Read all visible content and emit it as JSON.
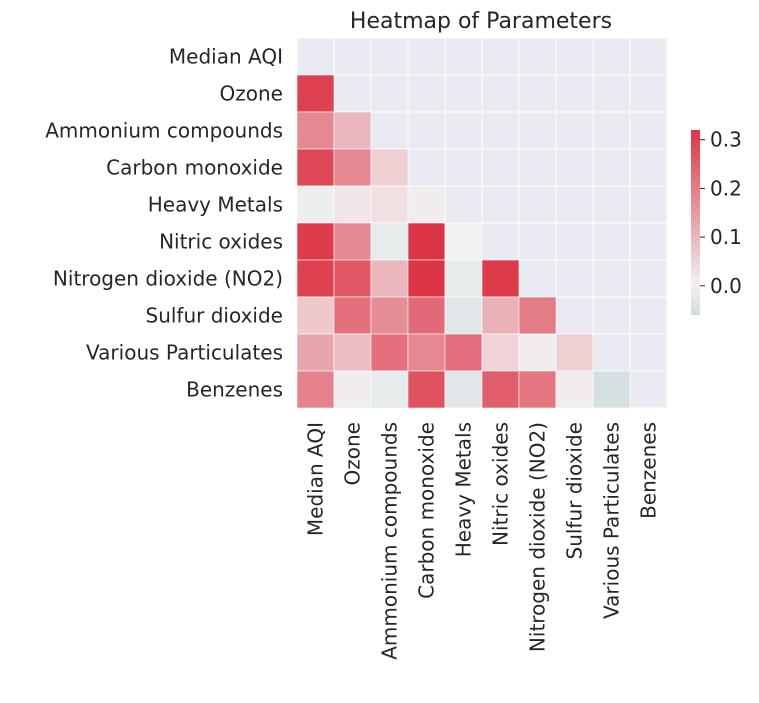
{
  "chart_data": {
    "type": "heatmap",
    "title": "Heatmap of Parameters",
    "rows": [
      "Median AQI",
      "Ozone",
      "Ammonium compounds",
      "Carbon monoxide",
      "Heavy Metals",
      "Nitric oxides",
      "Nitrogen dioxide (NO2)",
      "Sulfur dioxide",
      "Various Particulates",
      "Benzenes"
    ],
    "columns": [
      "Median AQI",
      "Ozone",
      "Ammonium compounds",
      "Carbon monoxide",
      "Heavy Metals",
      "Nitric oxides",
      "Nitrogen dioxide (NO2)",
      "Sulfur dioxide",
      "Various Particulates",
      "Benzenes"
    ],
    "mask": "upper-triangle-including-diagonal",
    "values": [
      [
        null,
        null,
        null,
        null,
        null,
        null,
        null,
        null,
        null,
        null
      ],
      [
        0.3,
        null,
        null,
        null,
        null,
        null,
        null,
        null,
        null,
        null
      ],
      [
        0.18,
        0.1,
        null,
        null,
        null,
        null,
        null,
        null,
        null,
        null
      ],
      [
        0.29,
        0.18,
        0.06,
        null,
        null,
        null,
        null,
        null,
        null,
        null
      ],
      [
        -0.01,
        0.02,
        0.03,
        0.01,
        null,
        null,
        null,
        null,
        null,
        null
      ],
      [
        0.31,
        0.18,
        -0.02,
        0.32,
        0.0,
        null,
        null,
        null,
        null,
        null
      ],
      [
        0.3,
        0.26,
        0.1,
        0.32,
        -0.02,
        0.31,
        null,
        null,
        null,
        null
      ],
      [
        0.07,
        0.22,
        0.17,
        0.23,
        -0.03,
        0.11,
        0.2,
        null,
        null,
        null
      ],
      [
        0.13,
        0.09,
        0.22,
        0.18,
        0.22,
        0.05,
        0.01,
        0.06,
        null,
        null
      ],
      [
        0.19,
        0.01,
        -0.02,
        0.27,
        -0.03,
        0.25,
        0.21,
        0.01,
        -0.05,
        null
      ]
    ],
    "colorbar": {
      "ticks": [
        "0.0",
        "0.1",
        "0.2",
        "0.3"
      ],
      "range": [
        -0.06,
        0.32
      ],
      "low_color": "#cfdcde",
      "mid_color": "#f2f2f2",
      "high_color": "#dc3545",
      "center": 0.0
    },
    "background_color": "#eaeaf2",
    "grid": true
  }
}
